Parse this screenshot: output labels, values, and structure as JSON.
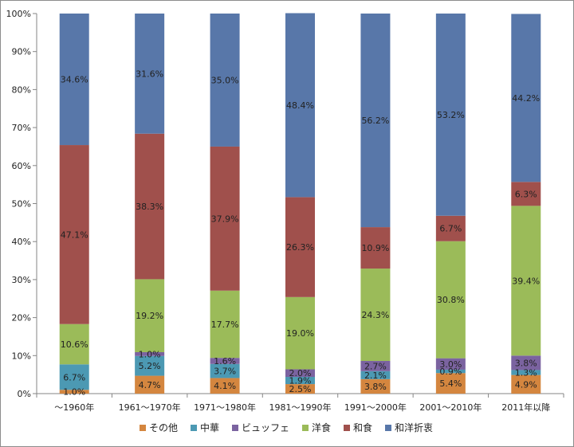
{
  "chart_data": {
    "type": "bar",
    "stacked": true,
    "normalized_percent": true,
    "categories": [
      "～1960年",
      "1961～1970年",
      "1971～1980年",
      "1981～1990年",
      "1991～2000年",
      "2001～2010年",
      "2011年以降"
    ],
    "series": [
      {
        "name": "その他",
        "color": "#D4863F",
        "values": [
          1.0,
          4.7,
          4.1,
          2.5,
          3.8,
          5.4,
          4.9
        ]
      },
      {
        "name": "中華",
        "color": "#4C99B3",
        "values": [
          6.7,
          5.2,
          3.7,
          1.9,
          2.1,
          0.9,
          1.3
        ]
      },
      {
        "name": "ビュッフェ",
        "color": "#7B63A0",
        "values": [
          0.0,
          1.0,
          1.6,
          2.0,
          2.7,
          3.0,
          3.8
        ]
      },
      {
        "name": "洋食",
        "color": "#9BBB59",
        "values": [
          10.6,
          19.2,
          17.7,
          19.0,
          24.3,
          30.8,
          39.4
        ]
      },
      {
        "name": "和食",
        "color": "#A0504C",
        "values": [
          47.1,
          38.3,
          37.9,
          26.3,
          10.9,
          6.7,
          6.3
        ]
      },
      {
        "name": "和洋折衷",
        "color": "#5877A9",
        "values": [
          34.6,
          31.6,
          35.0,
          48.4,
          56.2,
          53.2,
          44.2
        ]
      }
    ],
    "data_labels": [
      [
        "1.0%",
        "4.7%",
        "4.1%",
        "2.5%",
        "3.8%",
        "5.4%",
        "4.9%"
      ],
      [
        "6.7%",
        "5.2%",
        "3.7%",
        "1.9%",
        "2.1%",
        "0.9%",
        "1.3%"
      ],
      [
        "",
        "1.0%",
        "1.6%",
        "2.0%",
        "2.7%",
        "3.0%",
        "3.8%"
      ],
      [
        "10.6%",
        "19.2%",
        "17.7%",
        "19.0%",
        "24.3%",
        "30.8%",
        "39.4%"
      ],
      [
        "47.1%",
        "38.3%",
        "37.9%",
        "26.3%",
        "10.9%",
        "6.7%",
        "6.3%"
      ],
      [
        "34.6%",
        "31.6%",
        "35.0%",
        "48.4%",
        "56.2%",
        "53.2%",
        "44.2%"
      ]
    ],
    "yaxis": {
      "ticks": [
        "0%",
        "10%",
        "20%",
        "30%",
        "40%",
        "50%",
        "60%",
        "70%",
        "80%",
        "90%",
        "100%"
      ],
      "ylim": [
        0,
        100
      ]
    },
    "title": "",
    "xlabel": "",
    "ylabel": "",
    "grid": false,
    "legend": "bottom"
  }
}
